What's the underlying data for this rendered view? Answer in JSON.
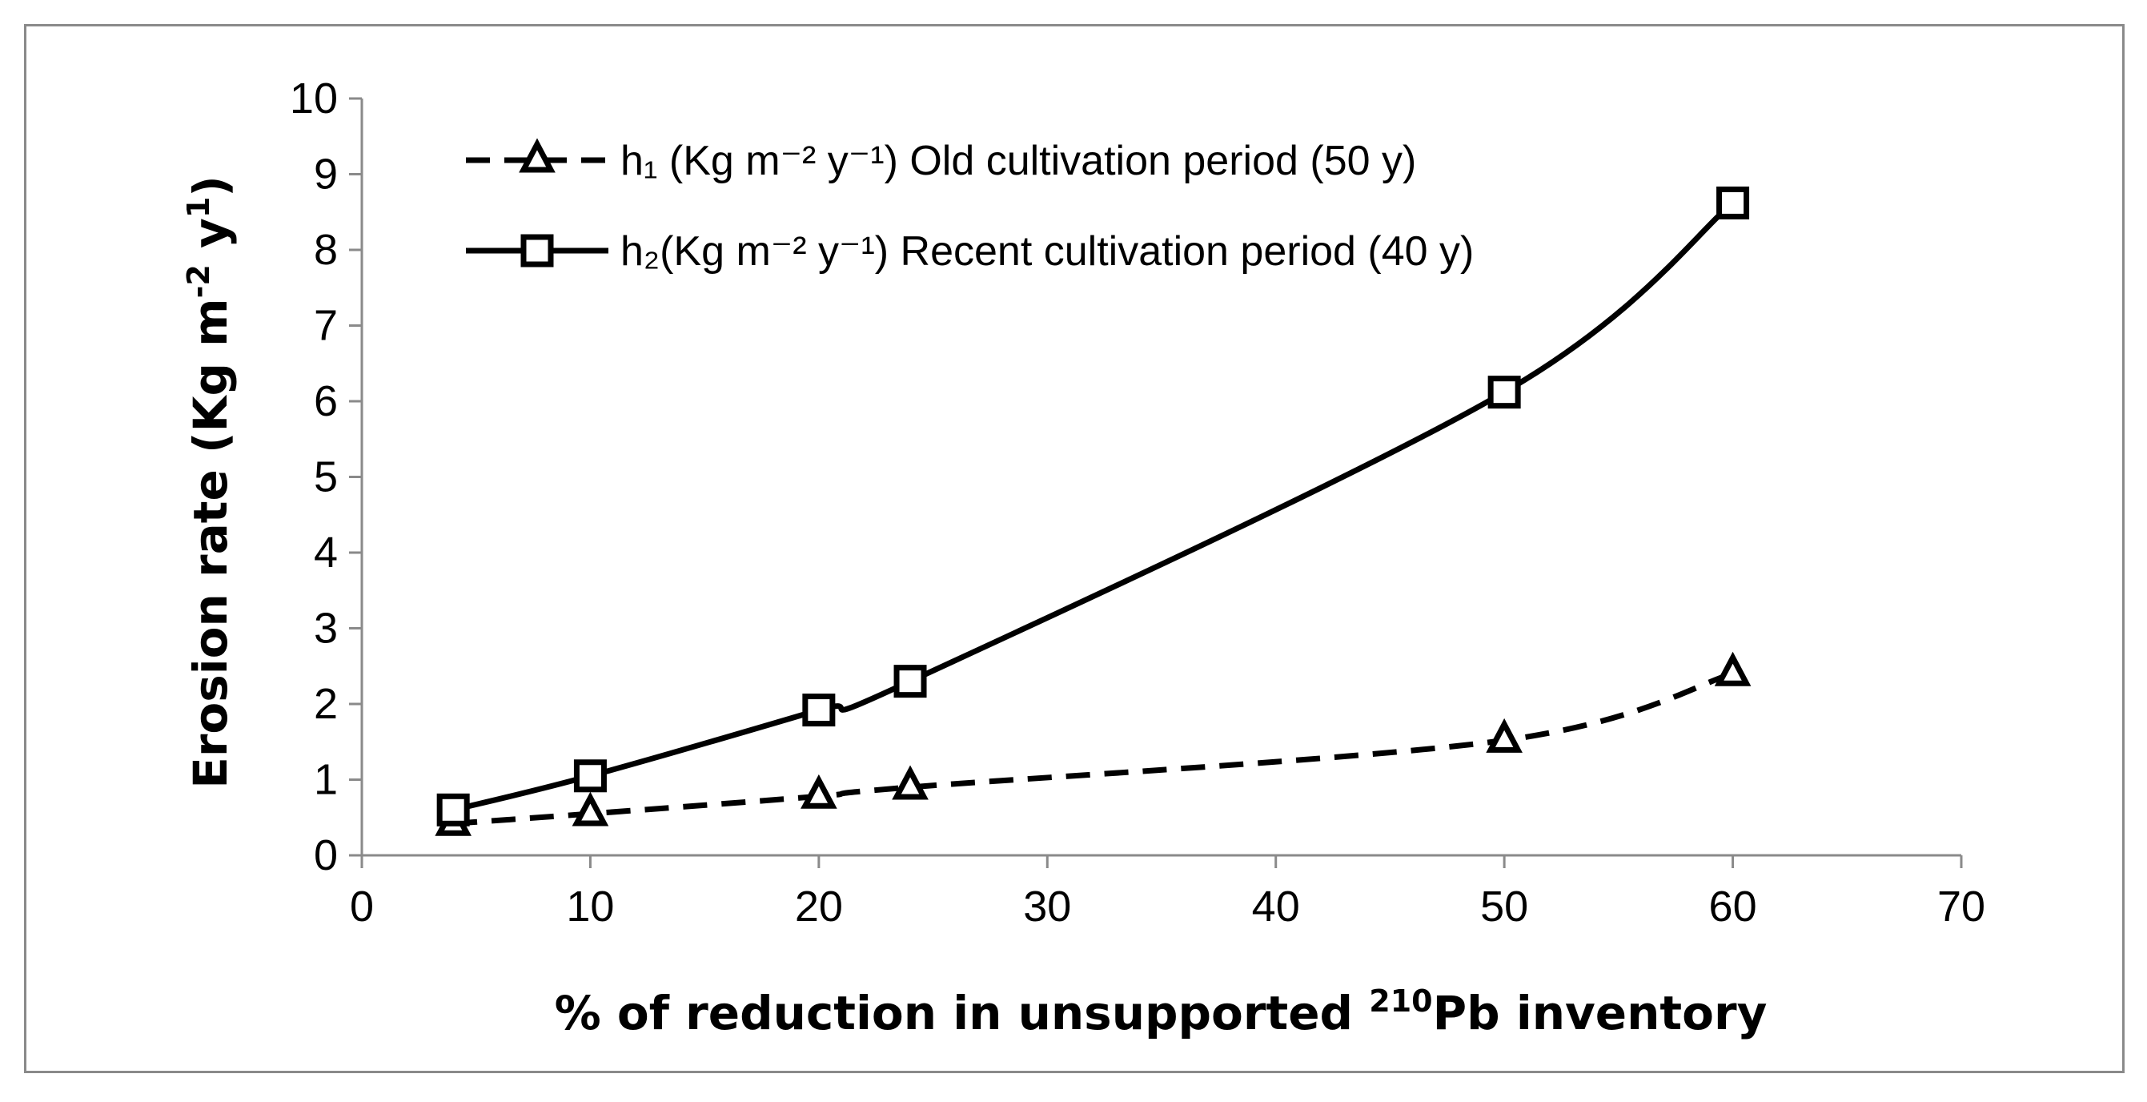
{
  "chart_data": {
    "type": "line",
    "x": [
      4,
      10,
      20,
      24,
      50,
      60
    ],
    "series": [
      {
        "name": "h1 (Kg m−2 y−1) Old cultivation period (50 y)",
        "legend_label": "h₁ (Kg m⁻² y⁻¹) Old cultivation period (50 y)",
        "values": [
          0.42,
          0.55,
          0.78,
          0.9,
          1.52,
          2.4
        ],
        "line_style": "dashed",
        "marker": "triangle",
        "color": "#000000"
      },
      {
        "name": "h2(Kg m−2 y−1) Recent cultivation period (40 y)",
        "legend_label": "h₂(Kg m⁻² y⁻¹) Recent cultivation period (40 y)",
        "values": [
          0.6,
          1.05,
          1.92,
          2.3,
          6.12,
          8.62
        ],
        "line_style": "solid",
        "marker": "square",
        "color": "#000000"
      }
    ],
    "xlabel_main": "% of reduction in unsupported ",
    "xlabel_sup": "210",
    "xlabel_tail": "Pb inventory",
    "ylabel_main": "Erosion rate (Kg m",
    "ylabel_sup1": "-2",
    "ylabel_mid": " y",
    "ylabel_sup2": "1",
    "ylabel_tail": ")",
    "xlim": [
      0,
      70
    ],
    "ylim": [
      0,
      10
    ],
    "xticks": [
      0,
      10,
      20,
      30,
      40,
      50,
      60,
      70
    ],
    "yticks": [
      0,
      1,
      2,
      3,
      4,
      5,
      6,
      7,
      8,
      9,
      10
    ],
    "grid": false,
    "legend_position": "top-left"
  }
}
